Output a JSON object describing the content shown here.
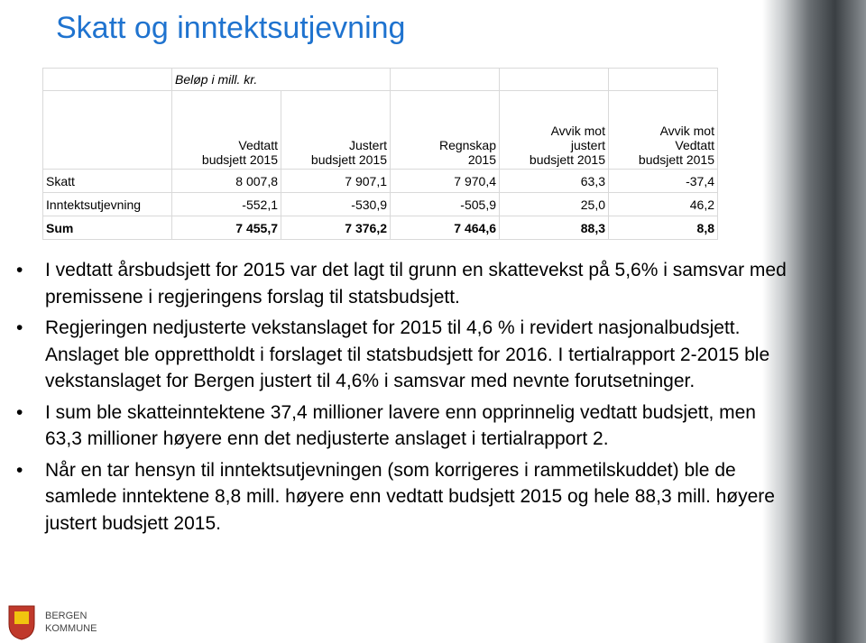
{
  "title": "Skatt og inntektsutjevning",
  "table": {
    "note": "Beløp i mill. kr.",
    "columns": [
      [
        "Vedtatt",
        "budsjett 2015"
      ],
      [
        "Justert",
        "budsjett 2015"
      ],
      [
        "Regnskap",
        "2015"
      ],
      [
        "Avvik mot",
        "justert",
        "budsjett 2015"
      ],
      [
        "Avvik mot",
        "Vedtatt",
        "budsjett 2015"
      ]
    ],
    "rows": [
      [
        "Skatt",
        "8 007,8",
        "7 907,1",
        "7 970,4",
        "63,3",
        "-37,4"
      ],
      [
        "Inntektsutjevning",
        "-552,1",
        "-530,9",
        "-505,9",
        "25,0",
        "46,2"
      ],
      [
        "Sum",
        "7 455,7",
        "7 376,2",
        "7 464,6",
        "88,3",
        "8,8"
      ]
    ]
  },
  "bullets": [
    "I vedtatt årsbudsjett for 2015 var det lagt til grunn en skattevekst på 5,6% i samsvar med premissene i regjeringens forslag til statsbudsjett.",
    "Regjeringen nedjusterte vekstanslaget  for  2015 til 4,6 % i revidert nasjonalbudsjett. Anslaget ble opprettholdt i forslaget til statsbudsjett for 2016. I tertialrapport 2-2015 ble vekstanslaget for Bergen justert til 4,6% i samsvar med nevnte forutsetninger.",
    "I sum ble skatteinntektene 37,4 millioner lavere enn opprinnelig vedtatt budsjett, men 63,3 millioner høyere enn det nedjusterte anslaget i tertialrapport 2.",
    "Når en tar hensyn til inntektsutjevningen (som korrigeres i rammetilskuddet) ble de samlede inntektene 8,8 mill. høyere enn vedtatt budsjett 2015 og hele 88,3 mill. høyere justert budsjett 2015."
  ],
  "logo": {
    "line1": "BERGEN",
    "line2": "KOMMUNE"
  }
}
